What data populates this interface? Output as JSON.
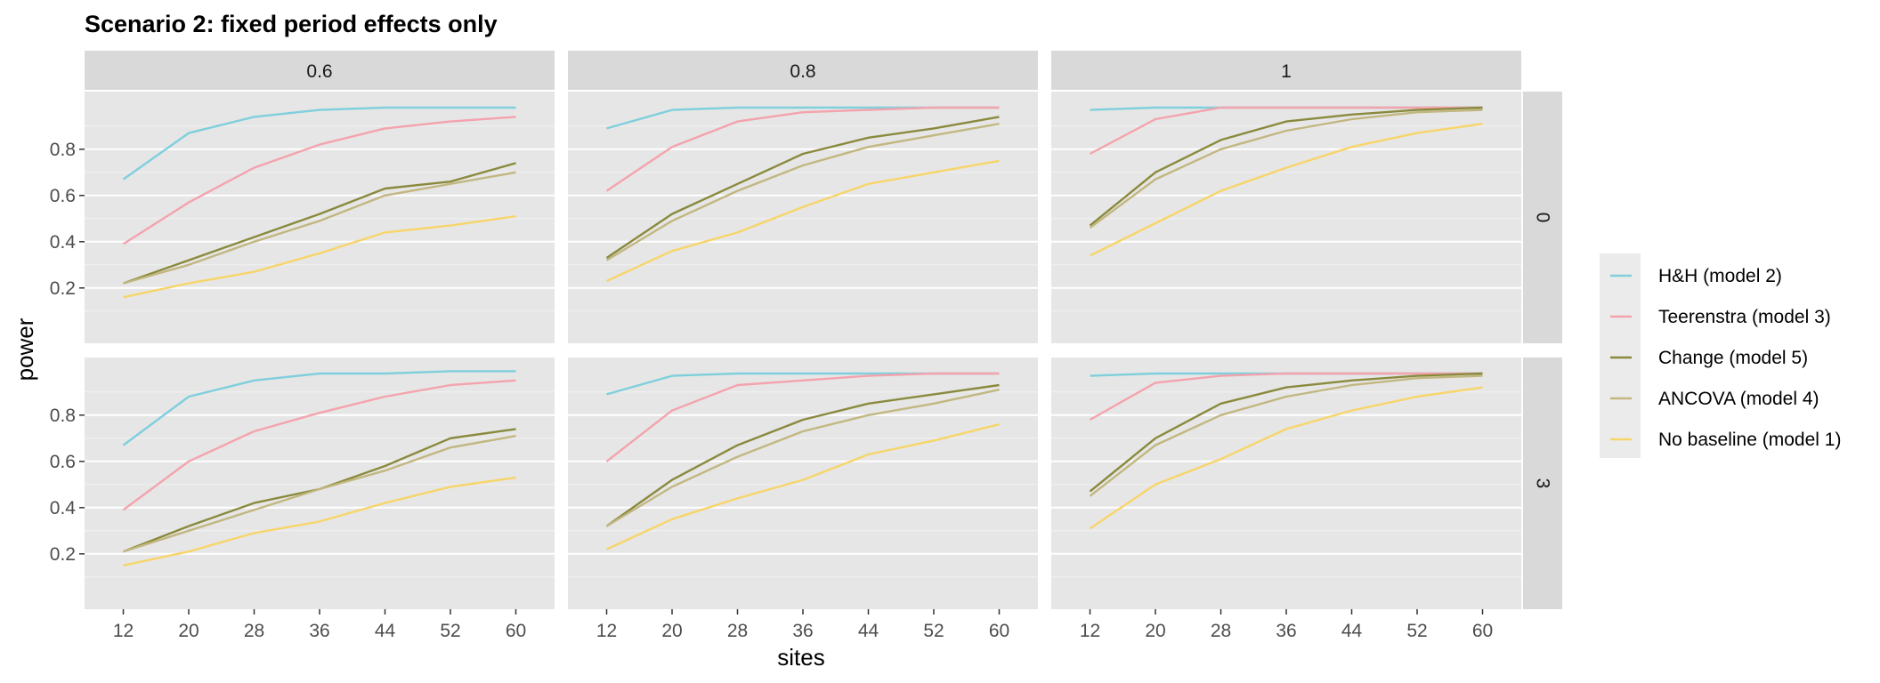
{
  "chart_data": {
    "type": "line",
    "title": "Scenario 2: fixed period effects only",
    "xlabel": "sites",
    "ylabel": "power",
    "x": [
      12,
      20,
      28,
      36,
      44,
      52,
      60
    ],
    "x_ticks": [
      "12",
      "20",
      "28",
      "36",
      "44",
      "52",
      "60"
    ],
    "y_ticks": [
      "0.2",
      "0.4",
      "0.6",
      "0.8"
    ],
    "y_tick_values": [
      0.2,
      0.4,
      0.6,
      0.8
    ],
    "ylim": [
      0.02,
      1.02
    ],
    "grid": true,
    "legend_position": "right",
    "col_facets": [
      "0.6",
      "0.8",
      "1"
    ],
    "row_facets": [
      "0",
      "3"
    ],
    "series_meta": [
      {
        "name": "H&H (model 2)",
        "color": "#7fcfdc"
      },
      {
        "name": "Teerenstra (model 3)",
        "color": "#f4a3ad"
      },
      {
        "name": "Change (model 5)",
        "color": "#8a8a3e"
      },
      {
        "name": "ANCOVA (model 4)",
        "color": "#c2b781"
      },
      {
        "name": "No baseline (model 1)",
        "color": "#f7d56a"
      }
    ],
    "panels": [
      {
        "col": "0.6",
        "row": "0",
        "series": [
          {
            "name": "H&H (model 2)",
            "values": [
              0.67,
              0.87,
              0.94,
              0.97,
              0.98,
              0.98,
              0.98
            ]
          },
          {
            "name": "Teerenstra (model 3)",
            "values": [
              0.39,
              0.57,
              0.72,
              0.82,
              0.89,
              0.92,
              0.94
            ]
          },
          {
            "name": "Change (model 5)",
            "values": [
              0.22,
              0.32,
              0.42,
              0.52,
              0.63,
              0.66,
              0.74
            ]
          },
          {
            "name": "ANCOVA (model 4)",
            "values": [
              0.22,
              0.3,
              0.4,
              0.49,
              0.6,
              0.65,
              0.7
            ]
          },
          {
            "name": "No baseline (model 1)",
            "values": [
              0.16,
              0.22,
              0.27,
              0.35,
              0.44,
              0.47,
              0.51
            ]
          }
        ]
      },
      {
        "col": "0.8",
        "row": "0",
        "series": [
          {
            "name": "H&H (model 2)",
            "values": [
              0.89,
              0.97,
              0.98,
              0.98,
              0.98,
              0.98,
              0.98
            ]
          },
          {
            "name": "Teerenstra (model 3)",
            "values": [
              0.62,
              0.81,
              0.92,
              0.96,
              0.97,
              0.98,
              0.98
            ]
          },
          {
            "name": "Change (model 5)",
            "values": [
              0.33,
              0.52,
              0.65,
              0.78,
              0.85,
              0.89,
              0.94
            ]
          },
          {
            "name": "ANCOVA (model 4)",
            "values": [
              0.32,
              0.49,
              0.62,
              0.73,
              0.81,
              0.86,
              0.91
            ]
          },
          {
            "name": "No baseline (model 1)",
            "values": [
              0.23,
              0.36,
              0.44,
              0.55,
              0.65,
              0.7,
              0.75
            ]
          }
        ]
      },
      {
        "col": "1",
        "row": "0",
        "series": [
          {
            "name": "H&H (model 2)",
            "values": [
              0.97,
              0.98,
              0.98,
              0.98,
              0.98,
              0.98,
              0.98
            ]
          },
          {
            "name": "Teerenstra (model 3)",
            "values": [
              0.78,
              0.93,
              0.98,
              0.98,
              0.98,
              0.98,
              0.98
            ]
          },
          {
            "name": "Change (model 5)",
            "values": [
              0.47,
              0.7,
              0.84,
              0.92,
              0.95,
              0.97,
              0.98
            ]
          },
          {
            "name": "ANCOVA (model 4)",
            "values": [
              0.46,
              0.67,
              0.8,
              0.88,
              0.93,
              0.96,
              0.97
            ]
          },
          {
            "name": "No baseline (model 1)",
            "values": [
              0.34,
              0.48,
              0.62,
              0.72,
              0.81,
              0.87,
              0.91
            ]
          }
        ]
      },
      {
        "col": "0.6",
        "row": "3",
        "series": [
          {
            "name": "H&H (model 2)",
            "values": [
              0.67,
              0.88,
              0.95,
              0.98,
              0.98,
              0.99,
              0.99
            ]
          },
          {
            "name": "Teerenstra (model 3)",
            "values": [
              0.39,
              0.6,
              0.73,
              0.81,
              0.88,
              0.93,
              0.95
            ]
          },
          {
            "name": "Change (model 5)",
            "values": [
              0.21,
              0.32,
              0.42,
              0.48,
              0.58,
              0.7,
              0.74
            ]
          },
          {
            "name": "ANCOVA (model 4)",
            "values": [
              0.21,
              0.3,
              0.39,
              0.48,
              0.56,
              0.66,
              0.71
            ]
          },
          {
            "name": "No baseline (model 1)",
            "values": [
              0.15,
              0.21,
              0.29,
              0.34,
              0.42,
              0.49,
              0.53
            ]
          }
        ]
      },
      {
        "col": "0.8",
        "row": "3",
        "series": [
          {
            "name": "H&H (model 2)",
            "values": [
              0.89,
              0.97,
              0.98,
              0.98,
              0.98,
              0.98,
              0.98
            ]
          },
          {
            "name": "Teerenstra (model 3)",
            "values": [
              0.6,
              0.82,
              0.93,
              0.95,
              0.97,
              0.98,
              0.98
            ]
          },
          {
            "name": "Change (model 5)",
            "values": [
              0.32,
              0.52,
              0.67,
              0.78,
              0.85,
              0.89,
              0.93
            ]
          },
          {
            "name": "ANCOVA (model 4)",
            "values": [
              0.32,
              0.49,
              0.62,
              0.73,
              0.8,
              0.85,
              0.91
            ]
          },
          {
            "name": "No baseline (model 1)",
            "values": [
              0.22,
              0.35,
              0.44,
              0.52,
              0.63,
              0.69,
              0.76
            ]
          }
        ]
      },
      {
        "col": "1",
        "row": "3",
        "series": [
          {
            "name": "H&H (model 2)",
            "values": [
              0.97,
              0.98,
              0.98,
              0.98,
              0.98,
              0.98,
              0.98
            ]
          },
          {
            "name": "Teerenstra (model 3)",
            "values": [
              0.78,
              0.94,
              0.97,
              0.98,
              0.98,
              0.98,
              0.98
            ]
          },
          {
            "name": "Change (model 5)",
            "values": [
              0.47,
              0.7,
              0.85,
              0.92,
              0.95,
              0.97,
              0.98
            ]
          },
          {
            "name": "ANCOVA (model 4)",
            "values": [
              0.45,
              0.67,
              0.8,
              0.88,
              0.93,
              0.96,
              0.97
            ]
          },
          {
            "name": "No baseline (model 1)",
            "values": [
              0.31,
              0.5,
              0.61,
              0.74,
              0.82,
              0.88,
              0.92
            ]
          }
        ]
      }
    ]
  }
}
